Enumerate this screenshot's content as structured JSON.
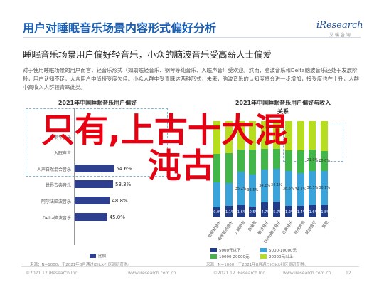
{
  "header": {
    "title": "用户对睡眠音乐场景内容形式偏好分析",
    "logo_main": "iResearch",
    "logo_sub": "艾 瑞 咨 询"
  },
  "subtitle": "睡眠音乐场景用户偏好轻音乐，小众的脑波音乐受高薪人士偏爱",
  "summary": "对于使用睡眠场景的用户而言，轻音乐形式（如助眠轻音乐、钢琴等纯音乐、入眠声音）受欢迎。然而，脑波音乐和Delta脑波音乐还处于发展阶段，用户认知不足，大众用户中尚接受度欠佳。小众人群中受青睐这两种形式，未来，脑波音乐的认知度将会进一步增加，接受度也在上升，人群中高收入人群较青睐此类。",
  "overlay": {
    "line1": "只有,上古十大混",
    "line2": "沌古"
  },
  "left_chart": {
    "title": "2021年中国睡眠音乐用户偏好",
    "legend": "比例",
    "source": "来源：N=1000，于2021年8月通过iClick社区调研获得。"
  },
  "right_chart": {
    "title_line1": "2021年中国睡眠音乐用户偏好与收入",
    "title_line2": "关系",
    "source": "来源：N=1000，于2021年8月通过iClick社区调研获得。"
  },
  "chart_data": [
    {
      "type": "bar",
      "orientation": "horizontal",
      "title": "2021年中国睡眠音乐用户偏好",
      "categories": [
        "",
        "钢琴音乐",
        "入眠声音",
        "人声自然混合音乐",
        "世界古典音乐",
        "阿尔法脑波音乐",
        "Delta脑波音乐"
      ],
      "series": [
        {
          "name": "比例",
          "values": [
            null,
            null,
            null,
            54.6,
            53.3,
            48.8,
            45.0
          ]
        }
      ],
      "value_labels": [
        "",
        "",
        "",
        "54.6%",
        "53.3%",
        "48.8%",
        "45.0%"
      ],
      "colors": [
        "#2e3f8f"
      ]
    },
    {
      "type": "bar",
      "stacked": true,
      "title": "2021年中国睡眠音乐用户偏好与收入关系",
      "categories": [
        "助眠轻音乐",
        "钢琴等纯音乐",
        "入眠声音",
        "白噪音",
        "脑波音乐",
        "Delta脑波音乐",
        "古典音乐",
        "自然声音",
        "冥想音乐",
        "其他"
      ],
      "series": [
        {
          "name": "5000元以下",
          "values": [
            10.0,
            11.1,
            11.6,
            10.5,
            14.7,
            15.7,
            11.2,
            11.4,
            11.6,
            11.8
          ],
          "color": "#203b87"
        },
        {
          "name": "5000-10000元",
          "values": [
            null,
            null,
            null,
            null,
            null,
            null,
            null,
            null,
            null,
            null
          ],
          "color": "#3aa3d9"
        },
        {
          "name": "10000-20000元",
          "values": [
            null,
            null,
            null,
            null,
            null,
            null,
            null,
            null,
            null,
            null
          ],
          "color": "#43b649"
        },
        {
          "name": "20000元以上",
          "values": [
            null,
            null,
            null,
            null,
            null,
            null,
            null,
            null,
            null,
            null
          ],
          "color": "#b6dd1e"
        }
      ],
      "visible_labels": [
        {
          "text": "21.9%",
          "cat": 8,
          "series": 2
        },
        {
          "text": "20.8%",
          "cat": 9,
          "series": 2
        },
        {
          "text": "35.2%",
          "cat": 2,
          "series": 1
        },
        {
          "text": "33.5%",
          "cat": 3,
          "series": 1
        },
        {
          "text": "34.2%",
          "cat": 4,
          "series": 1
        },
        {
          "text": "34.1%",
          "cat": 5,
          "series": 1
        },
        {
          "text": "36.5%",
          "cat": 6,
          "series": 1
        },
        {
          "text": "34.1%",
          "cat": 7,
          "series": 1
        },
        {
          "text": "36.5%",
          "cat": 8,
          "series": 1
        },
        {
          "text": "36.1%",
          "cat": 9,
          "series": 1
        }
      ]
    }
  ],
  "footer": {
    "left": "©2021.12 iResearch Inc.",
    "center": "www.iresearch.com.cn",
    "right_brand": "©2021.12 iResearch Inc.",
    "right_url": "www.iresearch.com.cn",
    "page": "12"
  }
}
